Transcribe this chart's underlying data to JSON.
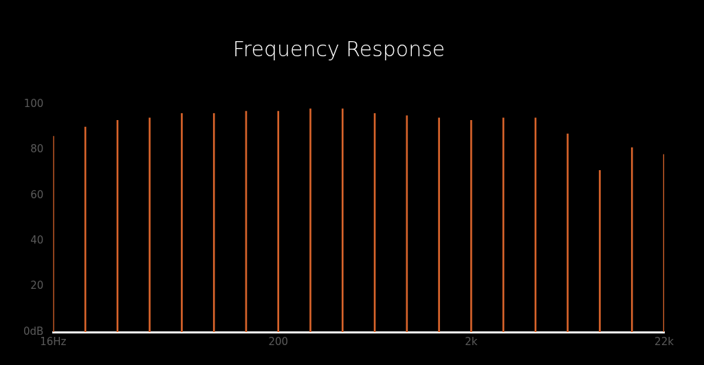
{
  "chart_data": {
    "type": "bar",
    "title": "Frequency Response",
    "categories": [
      "16Hz",
      null,
      null,
      null,
      null,
      null,
      null,
      "200",
      null,
      null,
      null,
      null,
      null,
      "2k",
      null,
      null,
      null,
      null,
      null,
      "22k"
    ],
    "values": [
      86,
      90,
      93,
      94,
      96,
      96,
      97,
      97,
      98,
      98,
      96,
      95,
      94,
      93,
      94,
      94,
      87,
      71,
      81,
      78
    ],
    "color": "#d9642b",
    "ylim": [
      0,
      100
    ],
    "yticks": [
      {
        "value": 0,
        "label": "0dB"
      },
      20,
      40,
      60,
      80,
      100
    ],
    "grid": false,
    "legend": false
  }
}
